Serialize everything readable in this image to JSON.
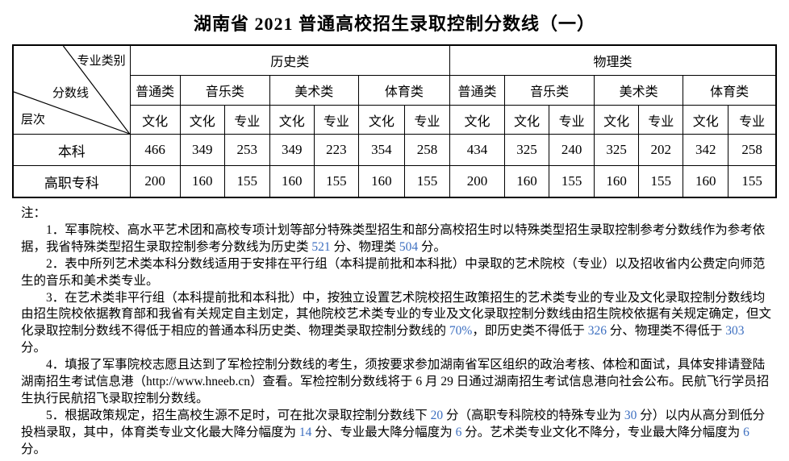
{
  "page": {
    "title": "湖南省 2021 普通高校招生录取控制分数线（一）"
  },
  "table": {
    "corner": {
      "top_label": "专业类别",
      "mid_label": "分数线",
      "bottom_label": "层次"
    },
    "groups": [
      {
        "label": "历史类",
        "subgroups": [
          {
            "label": "普通类",
            "cols": [
              "文化"
            ]
          },
          {
            "label": "音乐类",
            "cols": [
              "文化",
              "专业"
            ]
          },
          {
            "label": "美术类",
            "cols": [
              "文化",
              "专业"
            ]
          },
          {
            "label": "体育类",
            "cols": [
              "文化",
              "专业"
            ]
          }
        ]
      },
      {
        "label": "物理类",
        "subgroups": [
          {
            "label": "普通类",
            "cols": [
              "文化"
            ]
          },
          {
            "label": "音乐类",
            "cols": [
              "文化",
              "专业"
            ]
          },
          {
            "label": "美术类",
            "cols": [
              "文化",
              "专业"
            ]
          },
          {
            "label": "体育类",
            "cols": [
              "文化",
              "专业"
            ]
          }
        ]
      }
    ],
    "rows": [
      {
        "label": "本科",
        "values": [
          466,
          349,
          253,
          349,
          223,
          354,
          258,
          434,
          325,
          240,
          325,
          202,
          342,
          258
        ]
      },
      {
        "label": "高职专科",
        "values": [
          200,
          160,
          155,
          160,
          155,
          160,
          155,
          200,
          160,
          155,
          160,
          155,
          160,
          155
        ]
      }
    ]
  },
  "notes": {
    "label": "注：",
    "highlight_color": "#3d6fc0",
    "items": [
      [
        "1．军事院校、高水平艺术团和高校专项计划等部分特殊类型招生和部分高校招生时以特殊类型招生录取控制参考分数线作为参考依据，我省特殊类型招生录取控制参考分数线为历史类 ",
        {
          "hl": "521"
        },
        " 分、物理类 ",
        {
          "hl": "504"
        },
        " 分。"
      ],
      [
        "2．表中所列艺术类本科分数线适用于安排在平行组（本科提前批和本科批）中录取的艺术院校（专业）以及招收省内公费定向师范生的音乐和美术类专业。"
      ],
      [
        "3．在艺术类非平行组（本科提前批和本科批）中，按独立设置艺术院校招生政策招生的艺术类专业的专业及文化录取控制分数线均由招生院校依据教育部和我省有关规定自主划定，其他院校艺术类专业的专业及文化录取控制分数线由招生院校依据有关规定确定，但文化录取控制分数线不得低于相应的普通本科历史类、物理类录取控制分数线的 ",
        {
          "hl": "70%"
        },
        "，即历史类不得低于 ",
        {
          "hl": "326"
        },
        " 分、物理类不得低于 ",
        {
          "hl": "303"
        },
        " 分。"
      ],
      [
        "4．填报了军事院校志愿且达到了军检控制分数线的考生，须按要求参加湖南省军区组织的政治考核、体检和面试，具体安排请登陆湖南招生考试信息港（http://www.hneeb.cn）查看。军检控制分数线将于 6 月 29 日通过湖南招生考试信息港向社会公布。民航飞行学员招生执行民航招飞录取控制分数线。"
      ],
      [
        "5．根据政策规定，招生高校生源不足时，可在批次录取控制分数线下 ",
        {
          "hl": "20"
        },
        " 分（高职专科院校的特殊专业为 ",
        {
          "hl": "30"
        },
        " 分）以内从高分到低分投档录取，其中，体育类专业文化最大降分幅度为 ",
        {
          "hl": "14"
        },
        " 分、专业最大降分幅度为 ",
        {
          "hl": "6"
        },
        " 分。艺术类专业文化不降分，专业最大降分幅度为 ",
        {
          "hl": "6"
        },
        " 分。"
      ]
    ]
  }
}
